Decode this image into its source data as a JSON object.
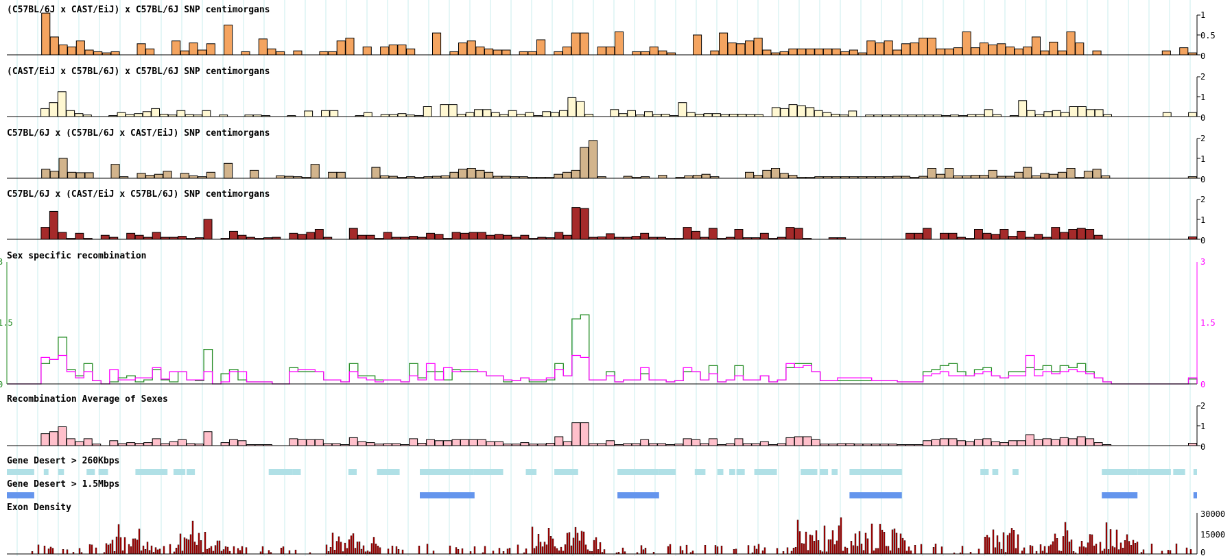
{
  "colors": {
    "grid": "#c8ecec",
    "female": "#228b22",
    "male": "#ff00ff",
    "desert_small": "#b0e0e6",
    "desert_large": "#6495ed",
    "exon": "#bb0000"
  },
  "chart_data": [
    {
      "type": "bar",
      "title": "(C57BL/6J x CAST/EiJ) x C57BL/6J SNP centimorgans",
      "color": "#f4a460",
      "ylim": [
        0,
        1
      ],
      "yticks": [
        "1",
        "0.5",
        "0"
      ],
      "values": [
        0,
        0,
        0,
        0,
        1.05,
        0.45,
        0.25,
        0.2,
        0.35,
        0.12,
        0.08,
        0.05,
        0.08,
        0,
        0,
        0.28,
        0.15,
        0,
        0,
        0.35,
        0.1,
        0.3,
        0.12,
        0.28,
        0,
        0.75,
        0,
        0.08,
        0,
        0.4,
        0.15,
        0.08,
        0,
        0.1,
        0,
        0,
        0.08,
        0.08,
        0.35,
        0.42,
        0,
        0.2,
        0,
        0.2,
        0.25,
        0.25,
        0.15,
        0,
        0,
        0.55,
        0,
        0.08,
        0.3,
        0.35,
        0.2,
        0.15,
        0.12,
        0.12,
        0,
        0.08,
        0.08,
        0.38,
        0,
        0.08,
        0.2,
        0.55,
        0.55,
        0,
        0.2,
        0.2,
        0.58,
        0,
        0.08,
        0.08,
        0.2,
        0.1,
        0.05,
        0,
        0,
        0.5,
        0,
        0.1,
        0.55,
        0.3,
        0.28,
        0.35,
        0.42,
        0.12,
        0.05,
        0.08,
        0.15,
        0.15,
        0.15,
        0.15,
        0.15,
        0.15,
        0.08,
        0.12,
        0.05,
        0.35,
        0.3,
        0.35,
        0.12,
        0.28,
        0.3,
        0.42,
        0.42,
        0.15,
        0.15,
        0.18,
        0.58,
        0.18,
        0.3,
        0.25,
        0.28,
        0.2,
        0.15,
        0.2,
        0.45,
        0.1,
        0.32,
        0.1,
        0.58,
        0.3,
        0,
        0.1,
        0,
        0,
        0,
        0,
        0,
        0,
        0,
        0.1,
        0,
        0.18,
        0.05
      ]
    },
    {
      "type": "bar",
      "title": "(CAST/EiJ x C57BL/6J) x C57BL/6J SNP centimorgans",
      "color": "#fff8d2",
      "ylim": [
        0,
        2
      ],
      "yticks": [
        "2",
        "1",
        "0"
      ],
      "values": [
        0,
        0,
        0,
        0,
        0.4,
        0.7,
        1.25,
        0.3,
        0.15,
        0.08,
        0,
        0,
        0.05,
        0.2,
        0.1,
        0.15,
        0.25,
        0.4,
        0.12,
        0.08,
        0.3,
        0.1,
        0.08,
        0.3,
        0,
        0.08,
        0,
        0,
        0.08,
        0.08,
        0.05,
        0,
        0,
        0.05,
        0,
        0.28,
        0,
        0.3,
        0.3,
        0,
        0,
        0.05,
        0.2,
        0,
        0.1,
        0.1,
        0.15,
        0.08,
        0.05,
        0.5,
        0,
        0.6,
        0.6,
        0.12,
        0.2,
        0.35,
        0.35,
        0.2,
        0.1,
        0.3,
        0.12,
        0.2,
        0.05,
        0.25,
        0.2,
        0.3,
        0.95,
        0.75,
        0.12,
        0,
        0,
        0.35,
        0.15,
        0.3,
        0.08,
        0.25,
        0.1,
        0.12,
        0.05,
        0.7,
        0.2,
        0.12,
        0.15,
        0.15,
        0.1,
        0.12,
        0.12,
        0.1,
        0.1,
        0,
        0.45,
        0.4,
        0.6,
        0.55,
        0.45,
        0.3,
        0.2,
        0.12,
        0.08,
        0.28,
        0,
        0.08,
        0.08,
        0.08,
        0.08,
        0.08,
        0.08,
        0.08,
        0.08,
        0.08,
        0.05,
        0.08,
        0.05,
        0.1,
        0.1,
        0.35,
        0.1,
        0,
        0.05,
        0.8,
        0.3,
        0.1,
        0.25,
        0.3,
        0.2,
        0.5,
        0.5,
        0.35,
        0.35,
        0.1,
        0,
        0,
        0,
        0,
        0,
        0,
        0.2,
        0,
        0,
        0.2
      ]
    },
    {
      "type": "bar",
      "title": "C57BL/6J x (C57BL/6J x CAST/EiJ) SNP centimorgans",
      "color": "#d2b48c",
      "ylim": [
        0,
        2
      ],
      "yticks": [
        "2",
        "1",
        "0"
      ],
      "values": [
        0,
        0,
        0,
        0,
        0.45,
        0.35,
        1.0,
        0.3,
        0.28,
        0.28,
        0,
        0,
        0.7,
        0.08,
        0,
        0.25,
        0.15,
        0.2,
        0.35,
        0,
        0.25,
        0.12,
        0.08,
        0.3,
        0,
        0.75,
        0,
        0,
        0.4,
        0,
        0,
        0.12,
        0.1,
        0.08,
        0.05,
        0.7,
        0,
        0.3,
        0.3,
        0,
        0,
        0,
        0.55,
        0.12,
        0.1,
        0.05,
        0.08,
        0.05,
        0.08,
        0.1,
        0.12,
        0.3,
        0.45,
        0.5,
        0.4,
        0.3,
        0.1,
        0.1,
        0.08,
        0.08,
        0.05,
        0.05,
        0.05,
        0.2,
        0.3,
        0.4,
        1.55,
        1.9,
        0.08,
        0,
        0,
        0.1,
        0.05,
        0.08,
        0,
        0.15,
        0,
        0.05,
        0.12,
        0.15,
        0.2,
        0.08,
        0,
        0,
        0,
        0.3,
        0.15,
        0.4,
        0.5,
        0.25,
        0.15,
        0.05,
        0.05,
        0.08,
        0.08,
        0.08,
        0.08,
        0.08,
        0.08,
        0.08,
        0.08,
        0.08,
        0.1,
        0.1,
        0.05,
        0.1,
        0.5,
        0.2,
        0.5,
        0.12,
        0.12,
        0.15,
        0.15,
        0.4,
        0.1,
        0.1,
        0.3,
        0.55,
        0.12,
        0.25,
        0.2,
        0.3,
        0.5,
        0.05,
        0.35,
        0.45,
        0.12,
        0,
        0,
        0,
        0,
        0,
        0,
        0,
        0,
        0,
        0.08
      ]
    },
    {
      "type": "bar",
      "title": "C57BL/6J x (CAST/EiJ x C57BL/6J) SNP centimorgans",
      "color": "#a52a2a",
      "ylim": [
        0,
        2
      ],
      "yticks": [
        "2",
        "1",
        "0"
      ],
      "values": [
        0,
        0,
        0,
        0,
        0.6,
        1.4,
        0.35,
        0.05,
        0.3,
        0.05,
        0,
        0.2,
        0.1,
        0,
        0.3,
        0.2,
        0.1,
        0.35,
        0.1,
        0.1,
        0.15,
        0.05,
        0.08,
        1.0,
        0,
        0.05,
        0.4,
        0.2,
        0.1,
        0.05,
        0.08,
        0.1,
        0,
        0.3,
        0.25,
        0.35,
        0.5,
        0.1,
        0,
        0,
        0.55,
        0.2,
        0.2,
        0.05,
        0.35,
        0.1,
        0.1,
        0.15,
        0.1,
        0.3,
        0.25,
        0.05,
        0.35,
        0.3,
        0.35,
        0.35,
        0.2,
        0.25,
        0.2,
        0.1,
        0.2,
        0.05,
        0.1,
        0.08,
        0.35,
        0.2,
        1.6,
        1.55,
        0.1,
        0.12,
        0.28,
        0.1,
        0.1,
        0.15,
        0.3,
        0.1,
        0.1,
        0.05,
        0.05,
        0.6,
        0.4,
        0.1,
        0.55,
        0.05,
        0.1,
        0.5,
        0.08,
        0.08,
        0.3,
        0.05,
        0.1,
        0.6,
        0.55,
        0.05,
        0,
        0,
        0.08,
        0.08,
        0,
        0,
        0,
        0,
        0,
        0,
        0,
        0.3,
        0.3,
        0.55,
        0,
        0.3,
        0.3,
        0.1,
        0.05,
        0.5,
        0.3,
        0.25,
        0.5,
        0.15,
        0.4,
        0.1,
        0.25,
        0.1,
        0.6,
        0.35,
        0.5,
        0.55,
        0.5,
        0.2,
        0,
        0,
        0,
        0,
        0,
        0,
        0,
        0,
        0,
        0,
        0.12
      ]
    },
    {
      "type": "line",
      "title": "Sex specific recombination",
      "ylim": [
        0,
        3
      ],
      "yticks_left": [
        "3",
        "1.5",
        "0"
      ],
      "yticks_right": [
        "3",
        "1.5",
        "0"
      ],
      "series": [
        {
          "color": "#228b22",
          "values": [
            0,
            0,
            0,
            0,
            0.5,
            0.6,
            1.15,
            0.35,
            0.2,
            0.5,
            0.08,
            0,
            0.05,
            0.15,
            0.2,
            0.05,
            0.1,
            0.35,
            0.1,
            0.05,
            0.3,
            0.1,
            0.08,
            0.85,
            0,
            0.25,
            0.35,
            0.1,
            0.05,
            0.05,
            0.05,
            0,
            0,
            0.4,
            0.3,
            0.3,
            0.3,
            0.1,
            0.1,
            0.05,
            0.5,
            0.2,
            0.2,
            0.1,
            0.1,
            0.1,
            0.05,
            0.5,
            0.15,
            0.3,
            0.3,
            0.1,
            0.35,
            0.3,
            0.3,
            0.3,
            0.2,
            0.2,
            0.05,
            0.08,
            0.15,
            0.05,
            0.05,
            0.1,
            0.5,
            0.2,
            1.6,
            1.7,
            0.1,
            0.1,
            0.3,
            0.05,
            0.1,
            0.1,
            0.25,
            0.1,
            0.1,
            0.05,
            0.08,
            0.3,
            0.3,
            0.1,
            0.45,
            0.05,
            0.1,
            0.45,
            0.1,
            0.1,
            0.2,
            0.05,
            0.1,
            0.4,
            0.5,
            0.5,
            0.3,
            0.08,
            0.08,
            0.08,
            0.08,
            0.08,
            0.08,
            0.08,
            0.08,
            0.08,
            0.05,
            0.05,
            0.05,
            0.3,
            0.35,
            0.45,
            0.5,
            0.3,
            0.2,
            0.35,
            0.4,
            0.2,
            0.15,
            0.3,
            0.3,
            0.4,
            0.35,
            0.45,
            0.3,
            0.45,
            0.4,
            0.5,
            0.3,
            0.15,
            0.05,
            0,
            0,
            0,
            0,
            0,
            0,
            0,
            0,
            0,
            0.12
          ]
        },
        {
          "color": "#ff00ff",
          "values": [
            0,
            0,
            0,
            0,
            0.65,
            0.6,
            0.7,
            0.3,
            0.15,
            0.3,
            0.08,
            0,
            0.35,
            0.1,
            0.1,
            0.15,
            0.15,
            0.4,
            0.12,
            0.3,
            0.3,
            0.1,
            0.1,
            0.3,
            0,
            0.05,
            0.3,
            0.3,
            0.05,
            0.05,
            0.05,
            0,
            0,
            0.3,
            0.35,
            0.35,
            0.3,
            0.1,
            0.1,
            0.05,
            0.3,
            0.15,
            0.1,
            0.05,
            0.1,
            0.1,
            0.05,
            0.2,
            0.1,
            0.5,
            0.1,
            0.4,
            0.3,
            0.35,
            0.35,
            0.3,
            0.2,
            0.2,
            0.1,
            0.08,
            0.15,
            0.1,
            0.1,
            0.15,
            0.35,
            0.2,
            0.7,
            0.65,
            0.1,
            0.1,
            0.2,
            0.05,
            0.1,
            0.1,
            0.4,
            0.1,
            0.1,
            0.05,
            0.08,
            0.4,
            0.3,
            0.1,
            0.25,
            0.05,
            0.1,
            0.2,
            0.1,
            0.1,
            0.2,
            0.05,
            0.1,
            0.5,
            0.4,
            0.45,
            0.3,
            0.08,
            0.08,
            0.15,
            0.15,
            0.15,
            0.15,
            0.08,
            0.08,
            0.08,
            0.05,
            0.05,
            0.05,
            0.2,
            0.25,
            0.3,
            0.2,
            0.2,
            0.2,
            0.25,
            0.3,
            0.2,
            0.15,
            0.2,
            0.2,
            0.7,
            0.2,
            0.3,
            0.25,
            0.3,
            0.35,
            0.3,
            0.25,
            0.15,
            0.05,
            0,
            0,
            0,
            0,
            0,
            0,
            0,
            0,
            0,
            0.15
          ]
        }
      ]
    },
    {
      "type": "bar",
      "title": "Recombination Average of Sexes",
      "color": "#ffc0cb",
      "ylim": [
        0,
        2
      ],
      "yticks": [
        "2",
        "1",
        "0"
      ],
      "values": [
        0,
        0,
        0,
        0,
        0.6,
        0.7,
        0.95,
        0.35,
        0.2,
        0.35,
        0.08,
        0,
        0.25,
        0.1,
        0.15,
        0.12,
        0.15,
        0.35,
        0.1,
        0.2,
        0.3,
        0.1,
        0.08,
        0.7,
        0,
        0.15,
        0.3,
        0.25,
        0.05,
        0.05,
        0.05,
        0,
        0,
        0.35,
        0.3,
        0.3,
        0.3,
        0.1,
        0.1,
        0.05,
        0.4,
        0.2,
        0.15,
        0.08,
        0.1,
        0.1,
        0.05,
        0.35,
        0.12,
        0.3,
        0.25,
        0.25,
        0.3,
        0.3,
        0.3,
        0.3,
        0.2,
        0.2,
        0.08,
        0.08,
        0.15,
        0.08,
        0.08,
        0.12,
        0.45,
        0.2,
        1.15,
        1.15,
        0.1,
        0.1,
        0.25,
        0.05,
        0.1,
        0.1,
        0.3,
        0.1,
        0.1,
        0.05,
        0.08,
        0.35,
        0.3,
        0.1,
        0.35,
        0.05,
        0.1,
        0.35,
        0.1,
        0.1,
        0.2,
        0.05,
        0.1,
        0.4,
        0.45,
        0.45,
        0.3,
        0.08,
        0.08,
        0.1,
        0.1,
        0.08,
        0.08,
        0.08,
        0.08,
        0.08,
        0.05,
        0.05,
        0.05,
        0.25,
        0.3,
        0.35,
        0.35,
        0.25,
        0.2,
        0.3,
        0.35,
        0.2,
        0.15,
        0.25,
        0.25,
        0.55,
        0.3,
        0.35,
        0.3,
        0.4,
        0.35,
        0.45,
        0.35,
        0.15,
        0.05,
        0,
        0,
        0,
        0,
        0,
        0,
        0,
        0,
        0,
        0.12
      ]
    },
    {
      "type": "table",
      "title": "Gene Desert > 260Kbps",
      "ranges": [
        [
          0,
          0.023
        ],
        [
          0.031,
          0.035
        ],
        [
          0.043,
          0.048
        ],
        [
          0.067,
          0.074
        ],
        [
          0.077,
          0.085
        ],
        [
          0.108,
          0.135
        ],
        [
          0.14,
          0.15
        ],
        [
          0.151,
          0.158
        ],
        [
          0.22,
          0.24
        ],
        [
          0.24,
          0.247
        ],
        [
          0.287,
          0.294
        ],
        [
          0.311,
          0.33
        ],
        [
          0.347,
          0.392
        ],
        [
          0.392,
          0.417
        ],
        [
          0.436,
          0.445
        ],
        [
          0.46,
          0.48
        ],
        [
          0.513,
          0.548
        ],
        [
          0.548,
          0.562
        ],
        [
          0.578,
          0.587
        ],
        [
          0.597,
          0.602
        ],
        [
          0.607,
          0.612
        ],
        [
          0.613,
          0.62
        ],
        [
          0.628,
          0.647
        ],
        [
          0.667,
          0.681
        ],
        [
          0.683,
          0.69
        ],
        [
          0.693,
          0.698
        ],
        [
          0.708,
          0.752
        ],
        [
          0.818,
          0.825
        ],
        [
          0.828,
          0.833
        ],
        [
          0.845,
          0.85
        ],
        [
          0.92,
          0.95
        ],
        [
          0.95,
          0.978
        ],
        [
          0.98,
          0.99
        ],
        [
          0.997,
          1.0
        ]
      ]
    },
    {
      "type": "table",
      "title": "Gene Desert > 1.5Mbps",
      "ranges": [
        [
          0,
          0.023
        ],
        [
          0.347,
          0.393
        ],
        [
          0.513,
          0.548
        ],
        [
          0.708,
          0.752
        ],
        [
          0.92,
          0.95
        ],
        [
          0.997,
          1.0
        ]
      ]
    },
    {
      "type": "bar",
      "title": "Exon Density",
      "ylim": [
        0,
        30000
      ],
      "yticks": [
        "30000",
        "15000",
        "0"
      ]
    }
  ]
}
